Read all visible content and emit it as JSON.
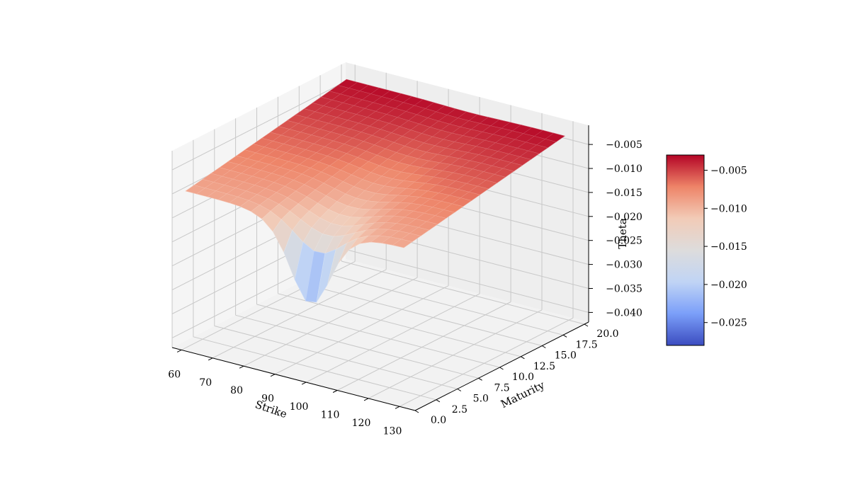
{
  "chart_data": {
    "type": "surface3d",
    "title": "",
    "xlabel": "Strike",
    "ylabel": "Maturity",
    "zlabel": "Theta",
    "x_ticks": [
      "60",
      "70",
      "80",
      "90",
      "100",
      "110",
      "120",
      "130"
    ],
    "y_ticks": [
      "0.0",
      "2.5",
      "5.0",
      "7.5",
      "10.0",
      "12.5",
      "15.0",
      "17.5",
      "20.0"
    ],
    "z_ticks": [
      "−0.040",
      "−0.035",
      "−0.030",
      "−0.025",
      "−0.020",
      "−0.015",
      "−0.010",
      "−0.005"
    ],
    "xlim": [
      57,
      135
    ],
    "ylim": [
      0,
      20.5
    ],
    "zlim": [
      -0.042,
      -0.001
    ],
    "colorbar": {
      "ticks": [
        "−0.025",
        "−0.020",
        "−0.015",
        "−0.010",
        "−0.005"
      ],
      "range": [
        -0.028,
        -0.003
      ],
      "colormap": [
        "#3b4cc0",
        "#7b9ff9",
        "#c0d4f5",
        "#dddcdc",
        "#f2cbb7",
        "#ee8468",
        "#b40426"
      ]
    },
    "surface": {
      "strike_min": 60,
      "strike_max": 130,
      "maturity_min": 0.5,
      "maturity_max": 20,
      "at_the_money_strike": 100,
      "theta_min": -0.028,
      "theta_max": -0.003,
      "grid": true
    },
    "colors": {
      "pane": "#f2f2f2",
      "grid": "#c8c8c8",
      "edge": "#000000"
    }
  }
}
